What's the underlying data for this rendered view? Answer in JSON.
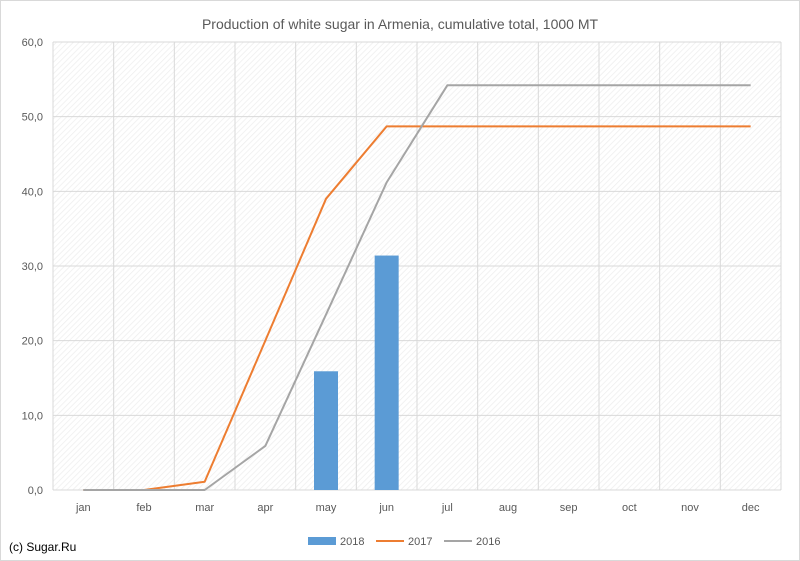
{
  "copyright": "(c) Sugar.Ru",
  "chart_data": {
    "type": "bar+line",
    "title": "Production of white sugar in Armenia, cumulative total, 1000 MT",
    "categories": [
      "jan",
      "feb",
      "mar",
      "apr",
      "may",
      "jun",
      "jul",
      "aug",
      "sep",
      "oct",
      "nov",
      "dec"
    ],
    "ylim": [
      0,
      60
    ],
    "yticks": [
      "0,0",
      "10,0",
      "20,0",
      "30,0",
      "40,0",
      "50,0",
      "60,0"
    ],
    "ytick_values": [
      0,
      10,
      20,
      30,
      40,
      50,
      60
    ],
    "grid": true,
    "legend_position": "bottom",
    "series": [
      {
        "name": "2018",
        "type": "bar",
        "color": "#5b9bd5",
        "values": [
          null,
          null,
          null,
          null,
          15.9,
          31.4,
          null,
          null,
          null,
          null,
          null,
          null
        ]
      },
      {
        "name": "2017",
        "type": "line",
        "color": "#ed7d31",
        "values": [
          0,
          0,
          1.1,
          20.0,
          39.0,
          48.7,
          48.7,
          48.7,
          48.7,
          48.7,
          48.7,
          48.7
        ]
      },
      {
        "name": "2016",
        "type": "line",
        "color": "#a5a5a5",
        "values": [
          0,
          0,
          0,
          5.9,
          23.5,
          41.2,
          54.2,
          54.2,
          54.2,
          54.2,
          54.2,
          54.2
        ]
      }
    ]
  }
}
